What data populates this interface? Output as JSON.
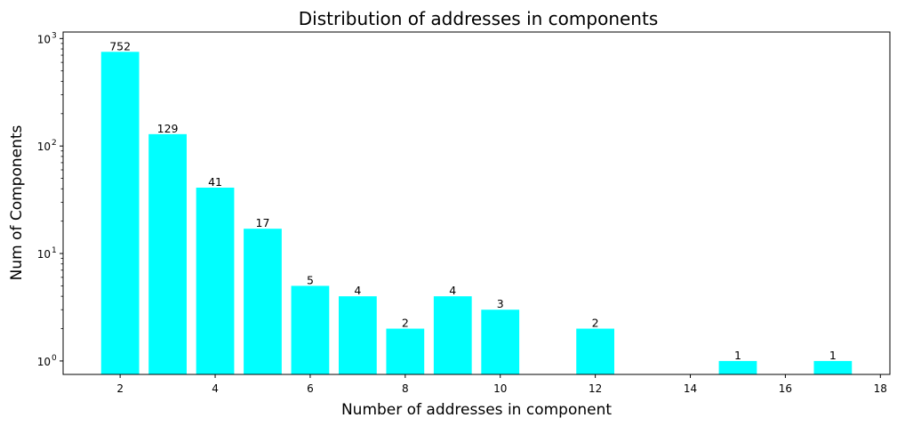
{
  "chart_data": {
    "type": "bar",
    "title": "Distribution of addresses in components",
    "xlabel": "Number of addresses in component",
    "ylabel": "Num of Components",
    "yscale": "log",
    "ylim": [
      0.75,
      1150
    ],
    "xlim": [
      0.8,
      18.2
    ],
    "bar_color": "#00ffff",
    "grid": false,
    "x": [
      2,
      3,
      4,
      5,
      6,
      7,
      8,
      9,
      10,
      12,
      15,
      17
    ],
    "values": [
      752,
      129,
      41,
      17,
      5,
      4,
      2,
      4,
      3,
      2,
      1,
      1
    ],
    "data_labels": [
      "752",
      "129",
      "41",
      "17",
      "5",
      "4",
      "2",
      "4",
      "3",
      "2",
      "1",
      "1"
    ],
    "x_ticks": [
      2,
      4,
      6,
      8,
      10,
      12,
      14,
      16,
      18
    ],
    "x_tick_labels": [
      "2",
      "4",
      "6",
      "8",
      "10",
      "12",
      "14",
      "16",
      "18"
    ],
    "y_major_ticks": [
      1,
      10,
      100,
      1000
    ],
    "y_tick_bases": [
      "10",
      "10",
      "10",
      "10"
    ],
    "y_tick_exponents": [
      "0",
      "1",
      "2",
      "3"
    ]
  }
}
